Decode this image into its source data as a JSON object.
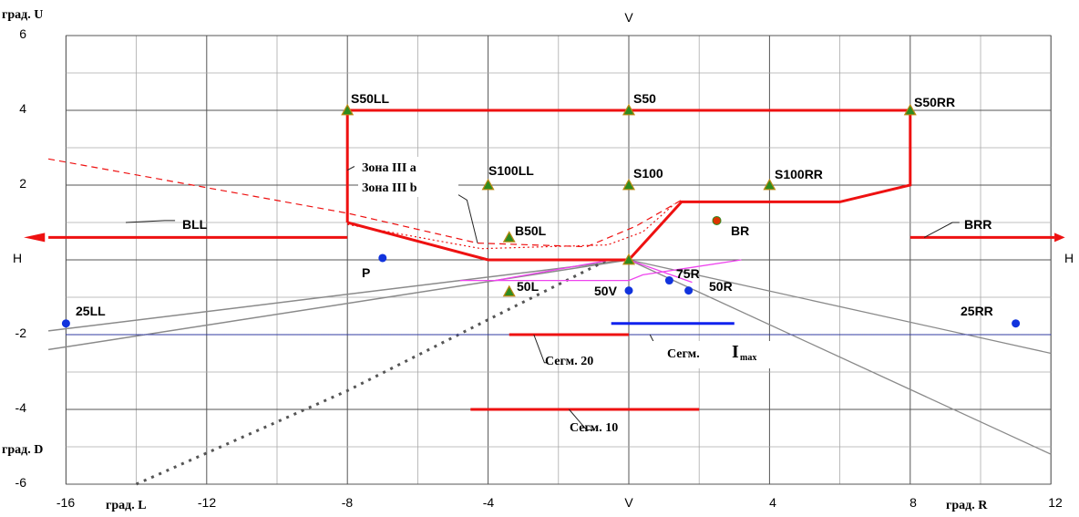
{
  "axis": {
    "u_unit": "град. U",
    "d_unit": "град. D",
    "l_unit": "град. L",
    "r_unit": "град. R",
    "v_top": "V",
    "v_bottom": "V",
    "h_left": "H",
    "h_right": "H",
    "x_ticks": [
      "-16",
      "-12",
      "-8",
      "-4",
      "V",
      "4",
      "8",
      "12"
    ],
    "y_ticks": [
      "6",
      "4",
      "2",
      "H",
      "-2",
      "-4",
      "-6"
    ]
  },
  "points": {
    "s50ll": "S50LL",
    "s50": "S50",
    "s50rr": "S50RR",
    "s100ll": "S100LL",
    "s100": "S100",
    "s100rr": "S100RR",
    "b50l": "B50L",
    "br": "BR",
    "bll": "BLL",
    "brr": "BRR",
    "p": "P",
    "p25ll": "25LL",
    "p25rr": "25RR",
    "p50l": "50L",
    "p50v": "50V",
    "p75r": "75R",
    "p50r": "50R"
  },
  "zones": {
    "zone3a": "Зона III a",
    "zone3b": "Зона III b"
  },
  "segments": {
    "seg20": "Сегм. 20",
    "seg10": "Сегм. 10",
    "segmax": "Сегм.",
    "imax_main": "I",
    "imax_sub": "max"
  },
  "colors": {
    "red": "#ee1111",
    "blue": "#1122ee",
    "grey": "#8a8a8a",
    "green": "#2e8b1f",
    "magenta": "#ee44ee",
    "point_blue": "#1133dd"
  }
}
